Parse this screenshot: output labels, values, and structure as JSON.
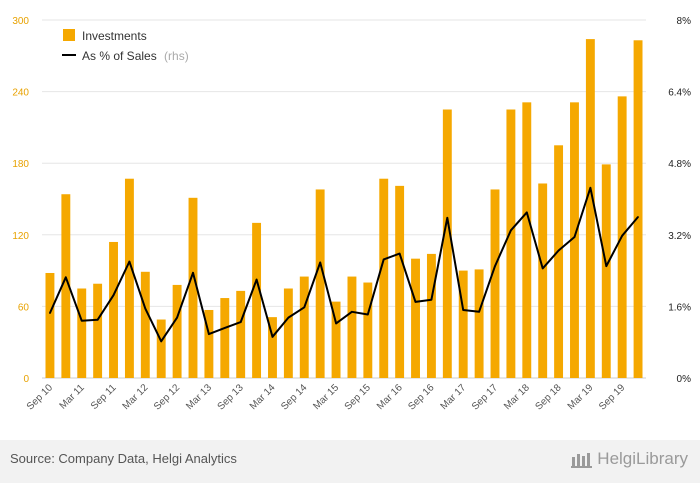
{
  "chart_data": {
    "type": "bar",
    "categories": [
      "Sep 10",
      "Dec 10",
      "Mar 11",
      "Jun 11",
      "Sep 11",
      "Dec 11",
      "Mar 12",
      "Jun 12",
      "Sep 12",
      "Dec 12",
      "Mar 13",
      "Jun 13",
      "Sep 13",
      "Dec 13",
      "Mar 14",
      "Jun 14",
      "Sep 14",
      "Dec 14",
      "Mar 15",
      "Jun 15",
      "Sep 15",
      "Dec 15",
      "Mar 16",
      "Jun 16",
      "Sep 16",
      "Dec 16",
      "Mar 17",
      "Jun 17",
      "Sep 17",
      "Dec 17",
      "Mar 18",
      "Jun 18",
      "Sep 18",
      "Dec 18",
      "Mar 19",
      "Jun 19",
      "Sep 19",
      "Dec 19"
    ],
    "x_tick_labels": [
      "Sep 10",
      "Mar 11",
      "Sep 11",
      "Mar 12",
      "Sep 12",
      "Mar 13",
      "Sep 13",
      "Mar 14",
      "Sep 14",
      "Mar 15",
      "Sep 15",
      "Mar 16",
      "Sep 16",
      "Mar 17",
      "Sep 17",
      "Mar 18",
      "Sep 18",
      "Mar 19",
      "Sep 19"
    ],
    "series": [
      {
        "name": "Investments",
        "type": "bar",
        "axis": "left",
        "color": "#f5a800",
        "values": [
          88,
          154,
          75,
          79,
          114,
          167,
          89,
          49,
          78,
          151,
          57,
          67,
          73,
          130,
          51,
          75,
          85,
          158,
          64,
          85,
          80,
          167,
          161,
          100,
          104,
          225,
          90,
          91,
          158,
          225,
          231,
          163,
          195,
          231,
          284,
          179,
          236,
          283
        ]
      },
      {
        "name": "As % of Sales",
        "note": "(rhs)",
        "type": "line",
        "axis": "right",
        "color": "#000000",
        "values": [
          1.45,
          2.25,
          1.28,
          1.3,
          1.85,
          2.6,
          1.55,
          0.82,
          1.35,
          2.35,
          0.98,
          1.12,
          1.25,
          2.2,
          0.92,
          1.35,
          1.58,
          2.58,
          1.22,
          1.48,
          1.42,
          2.65,
          2.78,
          1.7,
          1.75,
          3.58,
          1.52,
          1.48,
          2.5,
          3.3,
          3.7,
          2.45,
          2.85,
          3.15,
          4.25,
          2.5,
          3.18,
          3.6
        ]
      }
    ],
    "y_left": {
      "ticks": [
        "0",
        "60",
        "120",
        "180",
        "240",
        "300"
      ],
      "ylim": [
        0,
        300
      ]
    },
    "y_right": {
      "ticks": [
        "0%",
        "1.6%",
        "3.2%",
        "4.8%",
        "6.4%",
        "8%"
      ],
      "ylim": [
        0,
        8
      ]
    },
    "grid": true,
    "legend": "top-left"
  },
  "legend": {
    "bar_label": "Investments",
    "line_label": "As % of Sales",
    "line_note": "(rhs)"
  },
  "footer": {
    "source": "Source: Company Data, Helgi Analytics",
    "brand": "HelgiLibrary"
  },
  "colors": {
    "bar": "#f5a800",
    "line": "#000000",
    "grid": "#e6e6e6",
    "footer_bg": "#f2f2f2"
  }
}
